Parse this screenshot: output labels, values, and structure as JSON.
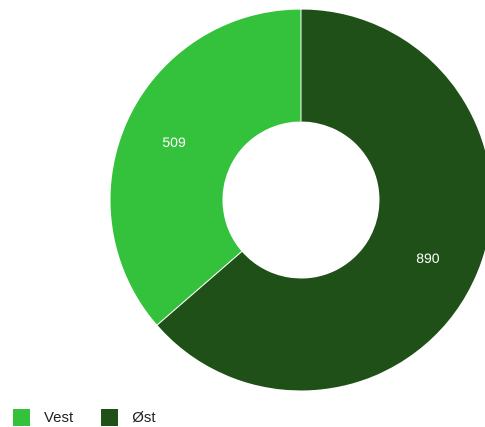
{
  "chart_data": {
    "type": "pie",
    "variant": "donut",
    "categories": [
      "Vest",
      "Øst"
    ],
    "values": [
      509,
      890
    ],
    "colors": [
      "#34c13c",
      "#1f5017"
    ],
    "data_labels": [
      "509",
      "890"
    ],
    "legend_position": "bottom-left"
  },
  "legend": {
    "items": [
      {
        "label": "Vest",
        "color": "#34c13c"
      },
      {
        "label": "Øst",
        "color": "#1f5017"
      }
    ]
  }
}
